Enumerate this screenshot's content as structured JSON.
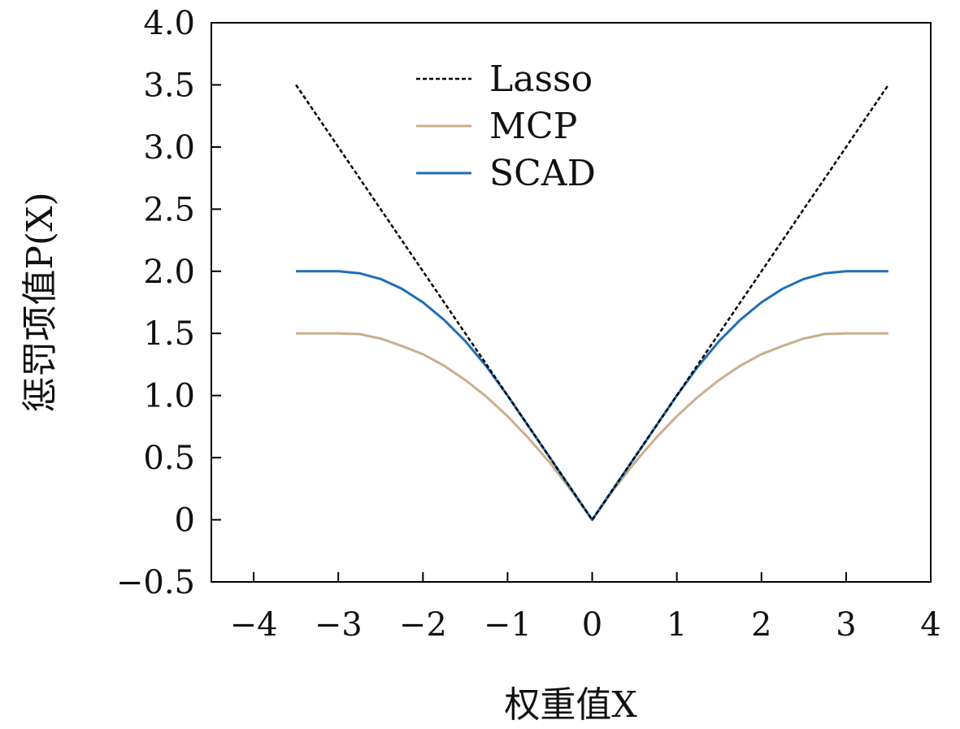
{
  "chart_data": {
    "type": "line",
    "title": "",
    "xlabel": "权重值X",
    "ylabel": "惩罚项值P(X)",
    "xlim": [
      -4.5,
      4
    ],
    "ylim": [
      -0.5,
      4.0
    ],
    "xticks": [
      -4,
      -3,
      -2,
      -1,
      0,
      1,
      2,
      3,
      4
    ],
    "xtick_labels": [
      "−4",
      "−3",
      "−2",
      "−1",
      "0",
      "1",
      "2",
      "3",
      "4"
    ],
    "yticks": [
      -0.5,
      0,
      0.5,
      1.0,
      1.5,
      2.0,
      2.5,
      3.0,
      3.5,
      4.0
    ],
    "ytick_labels": [
      "−0.5",
      "0",
      "0.5",
      "1.0",
      "1.5",
      "2.0",
      "2.5",
      "3.0",
      "3.5",
      "4.0"
    ],
    "grid": false,
    "legend": "top-center",
    "series": [
      {
        "name": "Lasso",
        "color": "#000000",
        "style": "dashed",
        "x": [
          -3.5,
          -3.0,
          -2.5,
          -2.0,
          -1.5,
          -1.0,
          -0.5,
          0,
          0.5,
          1.0,
          1.5,
          2.0,
          2.5,
          3.0,
          3.5
        ],
        "y": [
          3.5,
          3.0,
          2.5,
          2.0,
          1.5,
          1.0,
          0.5,
          0,
          0.5,
          1.0,
          1.5,
          2.0,
          2.5,
          3.0,
          3.5
        ]
      },
      {
        "name": "MCP",
        "color": "#c8b08c",
        "style": "solid",
        "x": [
          -3.5,
          -3.0,
          -2.75,
          -2.5,
          -2.25,
          -2.0,
          -1.75,
          -1.5,
          -1.25,
          -1.0,
          -0.75,
          -0.5,
          -0.25,
          0,
          0.25,
          0.5,
          0.75,
          1.0,
          1.25,
          1.5,
          1.75,
          2.0,
          2.25,
          2.5,
          2.75,
          3.0,
          3.5
        ],
        "y": [
          1.5,
          1.5,
          1.495,
          1.458,
          1.399,
          1.333,
          1.24,
          1.125,
          0.99,
          0.833,
          0.656,
          0.458,
          0.24,
          0,
          0.24,
          0.458,
          0.656,
          0.833,
          0.99,
          1.125,
          1.24,
          1.333,
          1.399,
          1.458,
          1.495,
          1.5,
          1.5
        ]
      },
      {
        "name": "SCAD",
        "color": "#1f6eb4",
        "style": "solid",
        "x": [
          -3.5,
          -3.0,
          -2.75,
          -2.5,
          -2.25,
          -2.0,
          -1.75,
          -1.5,
          -1.25,
          -1.0,
          -0.5,
          0,
          0.5,
          1.0,
          1.25,
          1.5,
          1.75,
          2.0,
          2.25,
          2.5,
          2.75,
          3.0,
          3.5
        ],
        "y": [
          2.0,
          2.0,
          1.984,
          1.938,
          1.859,
          1.75,
          1.609,
          1.438,
          1.234,
          1.0,
          0.5,
          0,
          0.5,
          1.0,
          1.234,
          1.438,
          1.609,
          1.75,
          1.859,
          1.938,
          1.984,
          2.0,
          2.0
        ]
      }
    ]
  }
}
